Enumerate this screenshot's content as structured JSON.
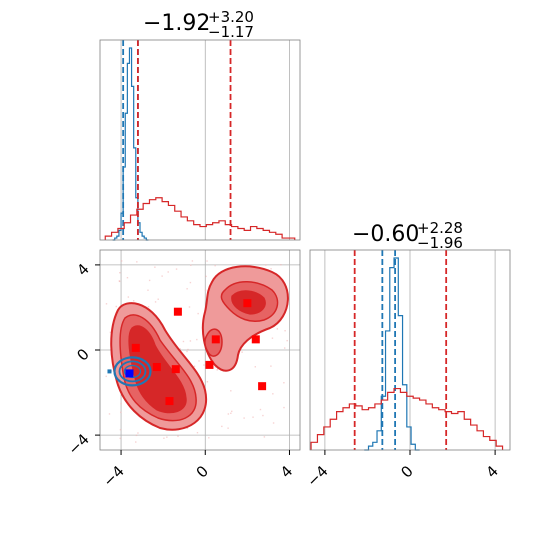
{
  "colors": {
    "blue": "#1f77b4",
    "red": "#d62728",
    "marker_red": "#ff0000",
    "marker_blue": "#0000ff",
    "grid": "#b0b0b0"
  },
  "chart_data": [
    {
      "type": "histogram",
      "panel": "top-left",
      "title": {
        "value": "−1.92",
        "sup": "+3.20",
        "sub": "−1.17"
      },
      "xlim": [
        -5,
        4.5
      ],
      "grid": true,
      "series": [
        {
          "color": "#1f77b4",
          "x": [
            -4.35,
            -4.25,
            -4.15,
            -4.05,
            -3.95,
            -3.85,
            -3.75,
            -3.65,
            -3.55,
            -3.45,
            -3.35,
            -3.25,
            -3.15,
            -3.05,
            -2.95,
            -2.85,
            -2.75
          ],
          "values": [
            0,
            1,
            2,
            5,
            14,
            38,
            66,
            92,
            100,
            80,
            48,
            22,
            9,
            4,
            2,
            1,
            0
          ],
          "quantiles": [
            -3.9,
            -3.2
          ]
        },
        {
          "color": "#d62728",
          "x": [
            -4.6,
            -4.3,
            -4.0,
            -3.7,
            -3.4,
            -3.1,
            -2.8,
            -2.5,
            -2.2,
            -1.9,
            -1.6,
            -1.3,
            -1.0,
            -0.7,
            -0.4,
            -0.1,
            0.2,
            0.5,
            0.8,
            1.1,
            1.4,
            1.7,
            2.0,
            2.3,
            2.6,
            2.9,
            3.2,
            3.5,
            3.8,
            4.1
          ],
          "values": [
            2,
            4,
            6,
            9,
            13,
            16,
            19,
            21,
            22,
            20,
            18,
            15,
            12,
            10,
            8,
            7,
            8,
            9,
            10,
            8,
            7,
            6,
            5,
            7,
            6,
            5,
            4,
            3,
            1,
            1
          ],
          "quantiles": [
            -3.2,
            1.2
          ]
        }
      ]
    },
    {
      "type": "contour",
      "panel": "bottom-left",
      "xlim": [
        -5,
        4.5
      ],
      "ylim": [
        -4.7,
        4.7
      ],
      "xticks": [
        -4,
        0,
        4
      ],
      "yticks": [
        -4,
        0,
        4
      ],
      "grid": true,
      "red_markers": [
        {
          "x": -1.3,
          "y": 1.8
        },
        {
          "x": -3.3,
          "y": 0.1
        },
        {
          "x": -2.3,
          "y": -0.8
        },
        {
          "x": -1.4,
          "y": -0.9
        },
        {
          "x": -1.7,
          "y": -2.4
        },
        {
          "x": 0.2,
          "y": -0.7
        },
        {
          "x": 0.5,
          "y": 0.5
        },
        {
          "x": 2.0,
          "y": 2.2
        },
        {
          "x": 2.4,
          "y": 0.5
        },
        {
          "x": 2.7,
          "y": -1.7
        }
      ],
      "blue_marker": {
        "x": -3.6,
        "y": -1.1
      }
    },
    {
      "type": "histogram",
      "panel": "bottom-right",
      "title": {
        "value": "−0.60",
        "sup": "+2.28",
        "sub": "−1.96"
      },
      "xlim": [
        -4.7,
        4.7
      ],
      "xticks": [
        -4,
        0,
        4
      ],
      "grid": true,
      "series": [
        {
          "color": "#1f77b4",
          "x": [
            -2.05,
            -1.85,
            -1.65,
            -1.45,
            -1.25,
            -1.05,
            -0.85,
            -0.65,
            -0.45,
            -0.25,
            -0.05,
            0.15,
            0.35
          ],
          "values": [
            0,
            2,
            4,
            10,
            28,
            62,
            95,
            100,
            70,
            34,
            12,
            3,
            0
          ],
          "quantiles": [
            -1.3,
            -0.7
          ]
        },
        {
          "color": "#d62728",
          "x": [
            -4.5,
            -4.2,
            -3.9,
            -3.6,
            -3.3,
            -3.0,
            -2.7,
            -2.4,
            -2.1,
            -1.8,
            -1.5,
            -1.2,
            -0.9,
            -0.6,
            -0.3,
            0.0,
            0.3,
            0.6,
            0.9,
            1.2,
            1.5,
            1.8,
            2.1,
            2.4,
            2.7,
            3.0,
            3.3,
            3.6,
            3.9,
            4.2
          ],
          "values": [
            4,
            8,
            12,
            16,
            20,
            22,
            24,
            23,
            21,
            22,
            24,
            26,
            30,
            32,
            30,
            28,
            27,
            26,
            24,
            22,
            21,
            20,
            19,
            20,
            16,
            13,
            10,
            7,
            5,
            2
          ],
          "quantiles": [
            -2.6,
            1.7
          ]
        }
      ]
    }
  ]
}
